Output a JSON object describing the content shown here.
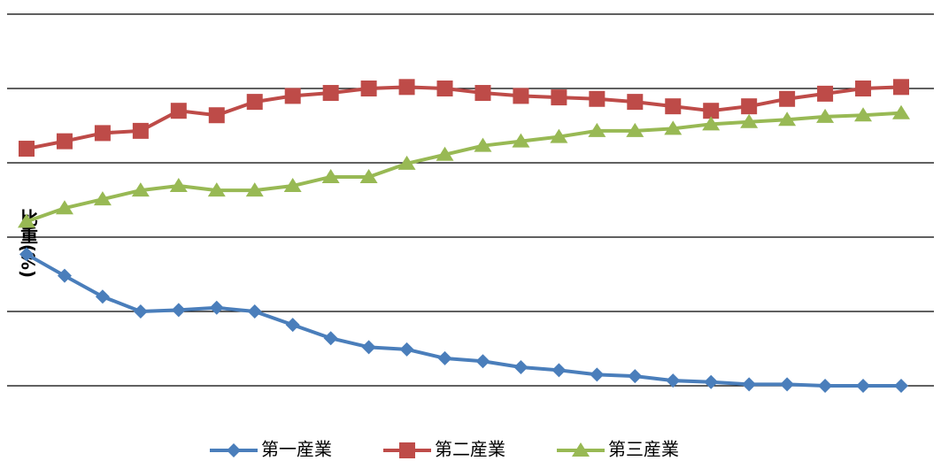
{
  "chart_data": {
    "type": "line",
    "y_label": "比重(%)",
    "ylim": [
      10,
      60
    ],
    "yticks": [
      10,
      20,
      30,
      40,
      50,
      60
    ],
    "grid": true,
    "series": [
      {
        "name": "第一産業",
        "color": "#4a7ebb",
        "marker": "diamond",
        "values": [
          27.7,
          24.8,
          22.0,
          20.0,
          20.2,
          20.5,
          20.0,
          18.2,
          16.4,
          15.2,
          14.9,
          13.7,
          13.3,
          12.5,
          12.1,
          11.5,
          11.3,
          10.7,
          10.5,
          10.2,
          10.2,
          10.0,
          10.0,
          10.0
        ]
      },
      {
        "name": "第二産業",
        "color": "#be4b48",
        "marker": "square",
        "values": [
          41.9,
          42.9,
          44.0,
          44.3,
          47.0,
          46.4,
          48.2,
          49.0,
          49.4,
          50.0,
          50.2,
          50.0,
          49.4,
          49.0,
          48.8,
          48.6,
          48.2,
          47.6,
          47.0,
          47.6,
          48.6,
          49.3,
          50.0,
          50.2
        ]
      },
      {
        "name": "第三産業",
        "color": "#98b954",
        "marker": "triangle",
        "values": [
          32.1,
          33.9,
          35.1,
          36.3,
          36.9,
          36.3,
          36.3,
          36.9,
          38.1,
          38.1,
          39.9,
          41.1,
          42.3,
          42.9,
          43.5,
          44.3,
          44.3,
          44.6,
          45.2,
          45.5,
          45.8,
          46.2,
          46.4,
          46.7
        ]
      }
    ],
    "legend": "bottom"
  }
}
